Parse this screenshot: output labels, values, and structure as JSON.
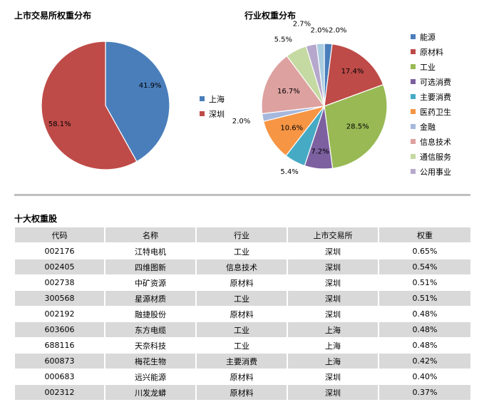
{
  "colors": {
    "blue": "#4a7ebb",
    "red": "#be4b48",
    "green": "#98b954",
    "purple": "#7d60a0",
    "teal": "#46aac5",
    "orange": "#f69544",
    "lightblue": "#a6b8dc",
    "pink": "#dda1a0",
    "lightgreen": "#c5d9a2",
    "lavender": "#b6a8cc",
    "table_stripe": "#d9d9d9"
  },
  "chart_data": [
    {
      "type": "pie",
      "title": "上市交易所权重分布",
      "slices": [
        {
          "label": "上海",
          "value": 41.9,
          "text": "41.9%",
          "color": "#4a7ebb"
        },
        {
          "label": "深圳",
          "value": 58.1,
          "text": "58.1%",
          "color": "#be4b48"
        }
      ],
      "legend": "right"
    },
    {
      "type": "pie",
      "title": "行业权重分布",
      "slices": [
        {
          "label": "能源",
          "value": 2.0,
          "text": "2.0%",
          "color": "#4a7ebb"
        },
        {
          "label": "原材料",
          "value": 17.4,
          "text": "17.4%",
          "color": "#be4b48"
        },
        {
          "label": "工业",
          "value": 28.5,
          "text": "28.5%",
          "color": "#98b954"
        },
        {
          "label": "可选消费",
          "value": 7.2,
          "text": "7.2%",
          "color": "#7d60a0"
        },
        {
          "label": "主要消费",
          "value": 5.4,
          "text": "5.4%",
          "color": "#46aac5"
        },
        {
          "label": "医药卫生",
          "value": 10.6,
          "text": "10.6%",
          "color": "#f69544"
        },
        {
          "label": "金融",
          "value": 2.0,
          "text": "2.0%",
          "color": "#a6b8dc"
        },
        {
          "label": "信息技术",
          "value": 16.7,
          "text": "16.7%",
          "color": "#dda1a0"
        },
        {
          "label": "通信服务",
          "value": 5.5,
          "text": "5.5%",
          "color": "#c5d9a2"
        },
        {
          "label": "公用事业",
          "value": 2.7,
          "text": "2.7%",
          "color": "#b6a8cc"
        },
        {
          "label": "",
          "value": 2.0,
          "text": "2.0%",
          "color": "#a9cce0"
        }
      ],
      "legend": "right"
    }
  ],
  "table": {
    "title": "十大权重股",
    "headers": [
      "代码",
      "名称",
      "行业",
      "上市交易所",
      "权重"
    ],
    "rows": [
      [
        "002176",
        "江特电机",
        "工业",
        "深圳",
        "0.65%"
      ],
      [
        "002405",
        "四维图新",
        "信息技术",
        "深圳",
        "0.54%"
      ],
      [
        "002738",
        "中矿资源",
        "原材料",
        "深圳",
        "0.51%"
      ],
      [
        "300568",
        "星源材质",
        "工业",
        "深圳",
        "0.51%"
      ],
      [
        "002192",
        "融捷股份",
        "原材料",
        "深圳",
        "0.48%"
      ],
      [
        "603606",
        "东方电缆",
        "工业",
        "上海",
        "0.48%"
      ],
      [
        "688116",
        "天奈科技",
        "工业",
        "上海",
        "0.48%"
      ],
      [
        "600873",
        "梅花生物",
        "主要消费",
        "上海",
        "0.42%"
      ],
      [
        "000683",
        "远兴能源",
        "原材料",
        "深圳",
        "0.40%"
      ],
      [
        "002312",
        "川发龙蟒",
        "原材料",
        "深圳",
        "0.37%"
      ]
    ]
  }
}
